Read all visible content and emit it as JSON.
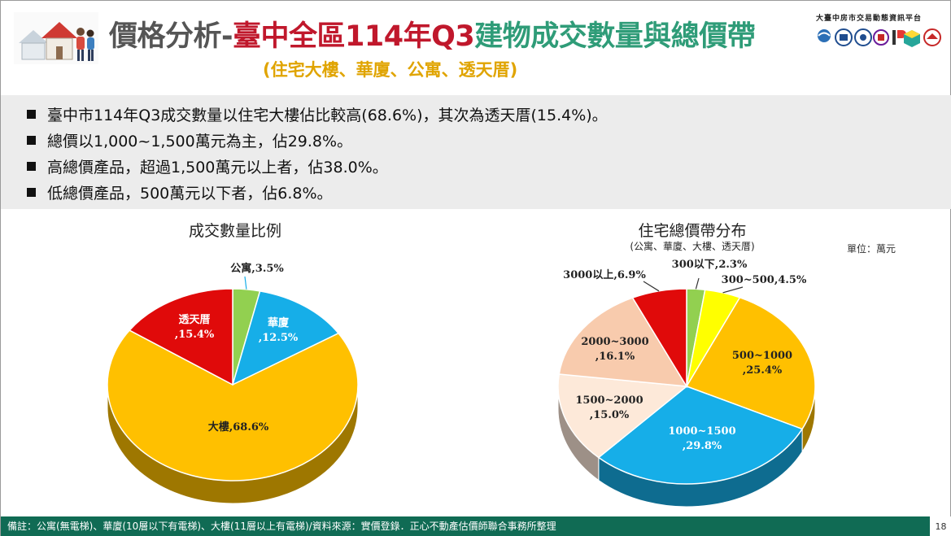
{
  "header": {
    "title_main": "價格分析-",
    "title_region": "臺中全區114年Q3",
    "title_topic": "建物成交數量與總價帶",
    "subtitle": "(住宅大樓、華廈、公寓、透天厝)",
    "org_name": "大臺中房市交易動態資訊平台"
  },
  "summary": {
    "bullets": [
      "臺中市114年Q3成交數量以住宅大樓佔比較高(68.6%)，其次為透天厝(15.4%)。",
      "總價以1,000~1,500萬元為主，佔29.8%。",
      "高總價產品，超過1,500萬元以上者，佔38.0%。",
      "低總價產品，500萬元以下者，佔6.8%。"
    ]
  },
  "chart_data": [
    {
      "type": "pie",
      "title": "成交數量比例",
      "slices": [
        {
          "label": "公寓",
          "value": 3.5,
          "display": "公寓,3.5%",
          "color": "#92d050"
        },
        {
          "label": "華廈",
          "value": 12.5,
          "display": "華廈\n,12.5%",
          "color": "#16aee8"
        },
        {
          "label": "大樓",
          "value": 68.6,
          "display": "大樓,68.6%",
          "color": "#ffc000"
        },
        {
          "label": "透天厝",
          "value": 15.4,
          "display": "透天厝\n,15.4%",
          "color": "#e00a0a"
        }
      ]
    },
    {
      "type": "pie",
      "title": "住宅總價帶分布",
      "subtitle": "(公寓、華廈、大樓、透天厝)",
      "unit": "單位：萬元",
      "slices": [
        {
          "label": "300以下",
          "value": 2.3,
          "display": "300以下,2.3%",
          "color": "#92d050"
        },
        {
          "label": "300~500",
          "value": 4.5,
          "display": "300~500,4.5%",
          "color": "#ffff00"
        },
        {
          "label": "500~1000",
          "value": 25.4,
          "display": "500~1000\n,25.4%",
          "color": "#ffc000"
        },
        {
          "label": "1000~1500",
          "value": 29.8,
          "display": "1000~1500\n,29.8%",
          "color": "#16aee8"
        },
        {
          "label": "1500~2000",
          "value": 15.0,
          "display": "1500~2000\n,15.0%",
          "color": "#fde9d9"
        },
        {
          "label": "2000~3000",
          "value": 16.1,
          "display": "2000~3000\n,16.1%",
          "color": "#f8cbad"
        },
        {
          "label": "3000以上",
          "value": 6.9,
          "display": "3000以上,6.9%",
          "color": "#e00a0a"
        }
      ]
    }
  ],
  "footer": {
    "note": "備註：公寓(無電梯)、華廈(10層以下有電梯)、大樓(11層以上有電梯)/資料來源：實價登錄．正心不動產估價師聯合事務所整理",
    "page": "18"
  }
}
